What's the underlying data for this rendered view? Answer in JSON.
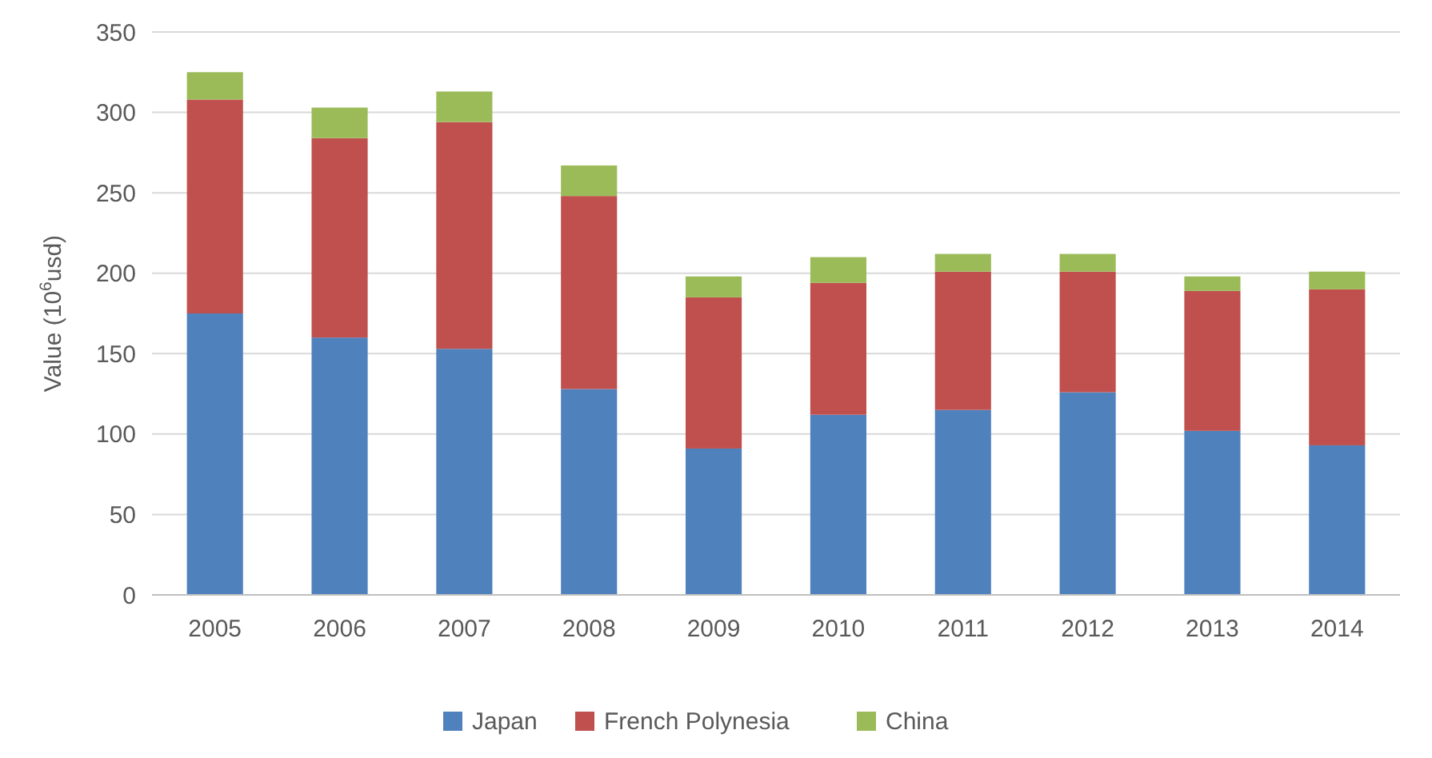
{
  "chart_data": {
    "type": "bar",
    "stacked": true,
    "ylabel": "Value (10$^{6}$usd)",
    "categories": [
      "2005",
      "2006",
      "2007",
      "2008",
      "2009",
      "2010",
      "2011",
      "2012",
      "2013",
      "2014"
    ],
    "series": [
      {
        "name": "Japan",
        "color": "#4f81bd",
        "values": [
          175,
          160,
          153,
          128,
          91,
          112,
          115,
          126,
          102,
          93
        ]
      },
      {
        "name": "French Polynesia",
        "color": "#c0504d",
        "values": [
          133,
          124,
          141,
          120,
          94,
          82,
          86,
          75,
          87,
          97
        ]
      },
      {
        "name": "China",
        "color": "#9bbb59",
        "values": [
          17,
          19,
          19,
          19,
          13,
          16,
          11,
          11,
          9,
          11
        ]
      }
    ],
    "ylim": [
      0,
      350
    ],
    "yticks": [
      0,
      50,
      100,
      150,
      200,
      250,
      300,
      350
    ],
    "grid": "y",
    "legend": "bottom"
  }
}
